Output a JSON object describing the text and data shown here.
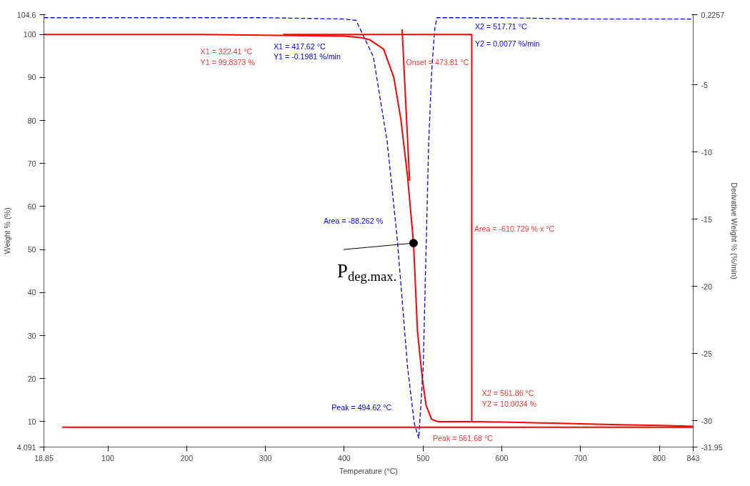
{
  "chart_data": {
    "type": "line",
    "xlabel": "Temperature (°C)",
    "ylabel": "Weight % (%)",
    "y2label": "Derivative Weight % (%/min)",
    "xlim": [
      18.85,
      843
    ],
    "xticks": [
      18.85,
      100,
      200,
      300,
      400,
      500,
      600,
      700,
      800,
      843
    ],
    "ylim": [
      4.091,
      104.6
    ],
    "yticks": [
      4.091,
      10,
      20,
      30,
      40,
      50,
      60,
      70,
      80,
      90,
      100,
      104.6
    ],
    "y2lim": [
      -31.95,
      0.2257
    ],
    "y2ticks": [
      -31.95,
      -30,
      -25,
      -20,
      -15,
      -10,
      -5,
      0.2257
    ],
    "grid": false,
    "marker": "none",
    "series": [
      {
        "color": "#ff0000",
        "line_style": "solid",
        "x": [
          18.85,
          220,
          320,
          400,
          420,
          432,
          450,
          463,
          472,
          480.4,
          488,
          493,
          499.5,
          504,
          511,
          519.5,
          562,
          600,
          650,
          700,
          750,
          800,
          843
        ],
        "values": [
          100,
          100,
          99.8,
          99.6,
          99.3,
          98.8,
          96.6,
          90,
          80.2,
          67,
          51.5,
          31,
          19.5,
          13.8,
          10.5,
          10.0,
          10.0,
          9.9,
          9.7,
          9.5,
          9.3,
          9.1,
          8.9
        ]
      },
      {
        "color": "#0000ff",
        "line_style": "dashed",
        "axis": "y2",
        "x": [
          18.85,
          100,
          200,
          300,
          400,
          415,
          437,
          454.5,
          467.4,
          480.4,
          489,
          494.62,
          500.3,
          504,
          507.3,
          511,
          515,
          517.71,
          600,
          700,
          843
        ],
        "values": [
          0,
          0,
          0,
          0,
          -0.1,
          -0.2,
          -2.9,
          -9.2,
          -16.5,
          -26,
          -30.2,
          -31.3,
          -26,
          -17,
          -9.2,
          -4,
          -0.8,
          0,
          0,
          -0.1,
          -0.1
        ]
      },
      {
        "color": "#ff0000",
        "line_style": "solid",
        "x": [
          42,
          843
        ],
        "values": [
          8.7,
          8.7
        ]
      },
      {
        "color": "#ff0000",
        "line_style": "solid",
        "x": [
          322.41,
          561.86,
          561.86
        ],
        "values": [
          100,
          100,
          10
        ]
      },
      {
        "color": "#ff0000",
        "line_style": "solid",
        "x": [
          473.5,
          483
        ],
        "values": [
          101.2,
          66
        ]
      }
    ],
    "annotations": [
      "X1 = 322.41 °C",
      "Y1 = 99.8373 %",
      "X1 = 417.62 °C",
      "Y1 = -0.1981 %/min",
      "X2 = 517.71 °C",
      "Y2 = 0.0077 %/min",
      "Onset = 473.81 °C",
      "Area = -88.262 %",
      "Area = -610.729 % x °C",
      "Peak = 494.62 °C",
      "X2 = 561.86 °C",
      "Y2 = 10.0034 %",
      "Peak = 561.68 °C",
      {
        "text": "P$_{deg.max.}$",
        "x": 488,
        "y": 51.5
      }
    ]
  }
}
